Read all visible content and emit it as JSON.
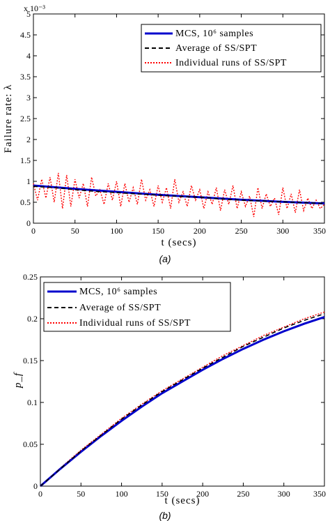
{
  "chart_data": [
    {
      "type": "line",
      "panel_label": "(a)",
      "xlabel": "t (secs)",
      "ylabel": "Failure rate: λ",
      "y_multiplier": "x 10⁻³",
      "xlim": [
        0,
        350
      ],
      "ylim": [
        0,
        5
      ],
      "x_ticks": [
        "0",
        "50",
        "100",
        "150",
        "200",
        "250",
        "300",
        "350"
      ],
      "y_ticks": [
        "0",
        "0.5",
        "1",
        "1.5",
        "2",
        "2.5",
        "3",
        "3.5",
        "4",
        "4.5",
        "5"
      ],
      "grid": false,
      "legend_position": "top-right",
      "series": [
        {
          "name": "MCS, 10⁶ samples",
          "style": "solid",
          "color": "#0000cc",
          "x": [
            0,
            50,
            100,
            150,
            200,
            250,
            300,
            350
          ],
          "y": [
            0.9,
            0.82,
            0.75,
            0.68,
            0.62,
            0.56,
            0.51,
            0.47
          ]
        },
        {
          "name": "Average of SS/SPT",
          "style": "dashed",
          "color": "#000000",
          "x": [
            0,
            25,
            50,
            75,
            100,
            125,
            150,
            175,
            200,
            225,
            250,
            275,
            300,
            325,
            350
          ],
          "y": [
            0.88,
            0.85,
            0.8,
            0.76,
            0.73,
            0.7,
            0.67,
            0.64,
            0.62,
            0.58,
            0.55,
            0.53,
            0.51,
            0.49,
            0.47
          ]
        },
        {
          "name": "Individual runs of SS/SPT",
          "style": "dotted",
          "color": "#ff0000",
          "x": [
            0,
            5,
            10,
            15,
            20,
            25,
            30,
            35,
            40,
            45,
            50,
            55,
            60,
            65,
            70,
            75,
            80,
            85,
            90,
            95,
            100,
            105,
            110,
            115,
            120,
            125,
            130,
            135,
            140,
            145,
            150,
            155,
            160,
            165,
            170,
            175,
            180,
            185,
            190,
            195,
            200,
            205,
            210,
            215,
            220,
            225,
            230,
            235,
            240,
            245,
            250,
            255,
            260,
            265,
            270,
            275,
            280,
            285,
            290,
            295,
            300,
            305,
            310,
            315,
            320,
            325,
            330,
            335,
            340,
            345,
            350
          ],
          "y": [
            0.95,
            0.55,
            1.05,
            0.6,
            1.1,
            0.5,
            1.2,
            0.35,
            1.15,
            0.4,
            1.05,
            0.6,
            0.95,
            0.4,
            1.1,
            0.65,
            0.8,
            0.45,
            0.95,
            0.55,
            1.0,
            0.4,
            0.95,
            0.5,
            0.85,
            0.45,
            1.05,
            0.55,
            0.8,
            0.4,
            0.9,
            0.5,
            0.85,
            0.35,
            1.05,
            0.5,
            0.75,
            0.4,
            0.9,
            0.55,
            0.8,
            0.35,
            0.75,
            0.45,
            0.85,
            0.3,
            0.8,
            0.45,
            0.9,
            0.35,
            0.75,
            0.4,
            0.65,
            0.15,
            0.85,
            0.35,
            0.7,
            0.4,
            0.6,
            0.2,
            0.85,
            0.35,
            0.7,
            0.25,
            0.8,
            0.3,
            0.6,
            0.35,
            0.55,
            0.35,
            0.45
          ]
        }
      ]
    },
    {
      "type": "line",
      "panel_label": "(b)",
      "xlabel": "t (secs)",
      "ylabel": "p_f",
      "xlim": [
        0,
        350
      ],
      "ylim": [
        0,
        0.25
      ],
      "x_ticks": [
        "0",
        "50",
        "100",
        "150",
        "200",
        "250",
        "300",
        "350"
      ],
      "y_ticks": [
        "0",
        "0.05",
        "0.1",
        "0.15",
        "0.2",
        "0.25"
      ],
      "grid": false,
      "legend_position": "top-left",
      "series": [
        {
          "name": "MCS, 10⁶ samples",
          "style": "solid",
          "color": "#0000cc",
          "x": [
            0,
            25,
            50,
            75,
            100,
            125,
            150,
            175,
            200,
            225,
            250,
            275,
            300,
            325,
            350
          ],
          "y": [
            0,
            0.021,
            0.041,
            0.06,
            0.078,
            0.095,
            0.111,
            0.125,
            0.139,
            0.152,
            0.164,
            0.175,
            0.185,
            0.194,
            0.202
          ]
        },
        {
          "name": "Average of SS/SPT",
          "style": "dashed",
          "color": "#000000",
          "x": [
            0,
            25,
            50,
            75,
            100,
            125,
            150,
            175,
            200,
            225,
            250,
            275,
            300,
            325,
            350
          ],
          "y": [
            0,
            0.021,
            0.042,
            0.061,
            0.08,
            0.097,
            0.113,
            0.127,
            0.141,
            0.154,
            0.167,
            0.178,
            0.189,
            0.198,
            0.206
          ]
        },
        {
          "name": "Individual runs of SS/SPT",
          "style": "dotted",
          "color": "#ff0000",
          "x": [
            0,
            25,
            50,
            75,
            100,
            125,
            150,
            175,
            200,
            225,
            250,
            275,
            300,
            325,
            350
          ],
          "y": [
            0,
            0.022,
            0.043,
            0.062,
            0.081,
            0.098,
            0.114,
            0.128,
            0.142,
            0.156,
            0.168,
            0.18,
            0.19,
            0.2,
            0.208
          ]
        }
      ]
    }
  ],
  "colors": {
    "mcs": "#0000cc",
    "average": "#000000",
    "individual": "#ff0000"
  }
}
